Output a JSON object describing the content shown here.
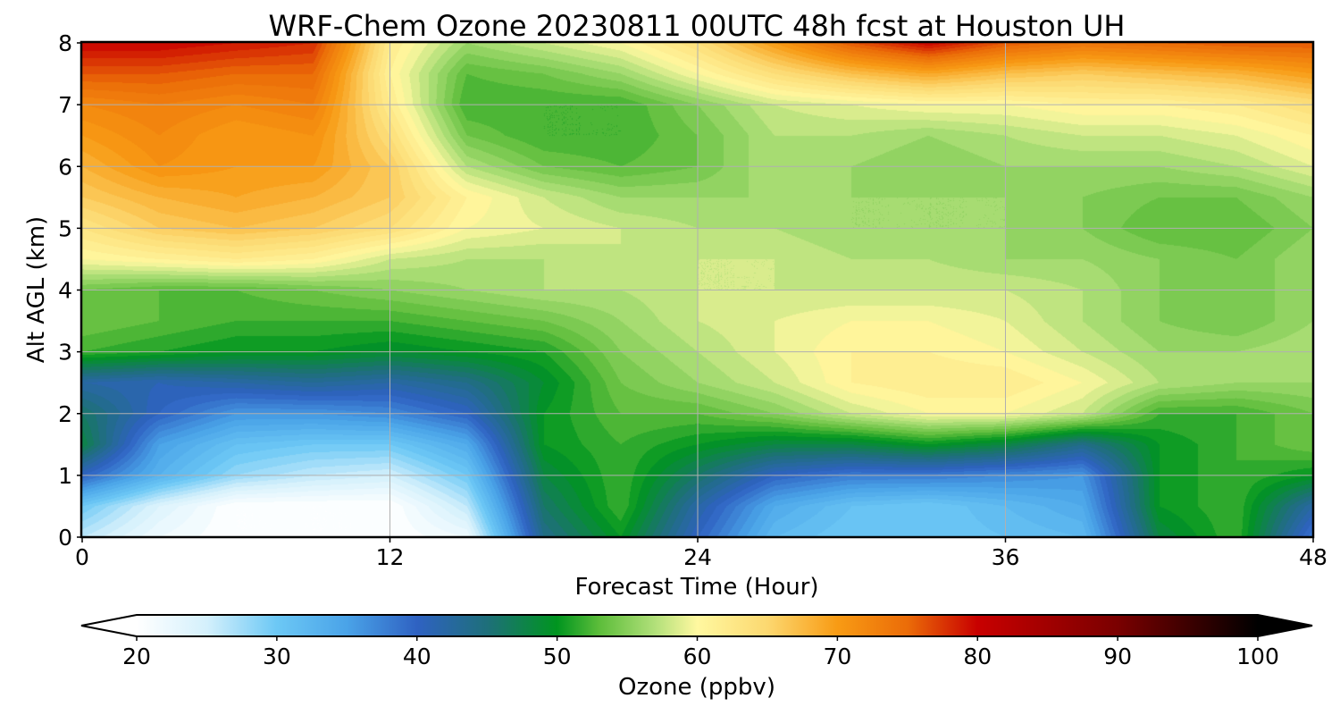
{
  "chart_data": {
    "type": "heatmap",
    "title": "WRF-Chem Ozone  20230811 00UTC 48h fcst at Houston UH",
    "xlabel": "Forecast Time (Hour)",
    "ylabel": "Alt AGL (km)",
    "xlim": [
      0,
      48
    ],
    "ylim": [
      0,
      8
    ],
    "x_ticks": [
      0,
      12,
      24,
      36,
      48
    ],
    "y_ticks": [
      0,
      1,
      2,
      3,
      4,
      5,
      6,
      7,
      8
    ],
    "grid": true,
    "x": [
      0,
      3,
      6,
      9,
      12,
      15,
      18,
      21,
      24,
      27,
      30,
      33,
      36,
      39,
      42,
      45,
      48
    ],
    "y": [
      0,
      0.5,
      1,
      1.5,
      2,
      2.5,
      3,
      3.5,
      4,
      4.5,
      5,
      5.5,
      6,
      6.5,
      7,
      7.5,
      8
    ],
    "values": [
      [
        26,
        22,
        20,
        20,
        20,
        22,
        44,
        50,
        40,
        32,
        30,
        30,
        31,
        32,
        48,
        52,
        38
      ],
      [
        30,
        24,
        20,
        20,
        20,
        26,
        46,
        52,
        42,
        34,
        31,
        30,
        32,
        34,
        50,
        52,
        42
      ],
      [
        40,
        33,
        28,
        26,
        25,
        30,
        48,
        52,
        46,
        40,
        38,
        38,
        37,
        36,
        50,
        52,
        50
      ],
      [
        48,
        35,
        31,
        30,
        30,
        34,
        50,
        52,
        50,
        48,
        48,
        50,
        48,
        44,
        50,
        52,
        54
      ],
      [
        46,
        40,
        36,
        36,
        37,
        40,
        50,
        53,
        53,
        55,
        58,
        60,
        60,
        58,
        52,
        52,
        54
      ],
      [
        42,
        41,
        42,
        43,
        42,
        44,
        49,
        54,
        56,
        58,
        61,
        62,
        62,
        60,
        57,
        56,
        56
      ],
      [
        52,
        51,
        50,
        50,
        49,
        50,
        51,
        55,
        57,
        59,
        61,
        61,
        60,
        58,
        56,
        56,
        57
      ],
      [
        54,
        53,
        52,
        52,
        52,
        53,
        54,
        56,
        58,
        59,
        60,
        60,
        59,
        57,
        55,
        54,
        56
      ],
      [
        54,
        53,
        53,
        54,
        55,
        56,
        57,
        57,
        58,
        58,
        58,
        58,
        58,
        57,
        55,
        54,
        56
      ],
      [
        60,
        61,
        62,
        61,
        58,
        57,
        57,
        58,
        58,
        58,
        57,
        57,
        56,
        56,
        55,
        54,
        56
      ],
      [
        63,
        66,
        67,
        66,
        64,
        60,
        59,
        58,
        57,
        57,
        56,
        56,
        56,
        55,
        53,
        53,
        55
      ],
      [
        66,
        68,
        69,
        68,
        66,
        61,
        58,
        56,
        56,
        56,
        56,
        56,
        56,
        55,
        54,
        54,
        56
      ],
      [
        68,
        71,
        70,
        70,
        66,
        57,
        54,
        53,
        54,
        57,
        56,
        55,
        56,
        56,
        56,
        57,
        59
      ],
      [
        70,
        72,
        70,
        71,
        64,
        54,
        52,
        52,
        54,
        57,
        57,
        56,
        57,
        58,
        58,
        59,
        61
      ],
      [
        72,
        73,
        72,
        73,
        62,
        52,
        52,
        52,
        55,
        58,
        59,
        60,
        60,
        61,
        61,
        62,
        64
      ],
      [
        76,
        76,
        75,
        75,
        61,
        53,
        54,
        56,
        60,
        64,
        67,
        69,
        67,
        66,
        67,
        68,
        70
      ],
      [
        80,
        80,
        79,
        78,
        62,
        56,
        58,
        60,
        64,
        70,
        76,
        80,
        76,
        74,
        75,
        76,
        76
      ]
    ],
    "colorbar": {
      "label": "Ozone  (ppbv)",
      "min": 20,
      "max": 100,
      "ticks": [
        20,
        30,
        40,
        50,
        60,
        70,
        80,
        90,
        100
      ],
      "extend": "both",
      "stops": [
        {
          "v": 20,
          "c": "#ffffff"
        },
        {
          "v": 25,
          "c": "#d4f0fc"
        },
        {
          "v": 30,
          "c": "#6cc8f5"
        },
        {
          "v": 35,
          "c": "#4aa3e8"
        },
        {
          "v": 40,
          "c": "#2f62c2"
        },
        {
          "v": 45,
          "c": "#1e6f7a"
        },
        {
          "v": 50,
          "c": "#00951f"
        },
        {
          "v": 53,
          "c": "#5cbd3a"
        },
        {
          "v": 57,
          "c": "#b2e07a"
        },
        {
          "v": 60,
          "c": "#fff8a0"
        },
        {
          "v": 65,
          "c": "#fcd870"
        },
        {
          "v": 70,
          "c": "#f89b14"
        },
        {
          "v": 75,
          "c": "#eb6c08"
        },
        {
          "v": 80,
          "c": "#c80000"
        },
        {
          "v": 90,
          "c": "#7a0000"
        },
        {
          "v": 100,
          "c": "#000000"
        }
      ]
    }
  }
}
